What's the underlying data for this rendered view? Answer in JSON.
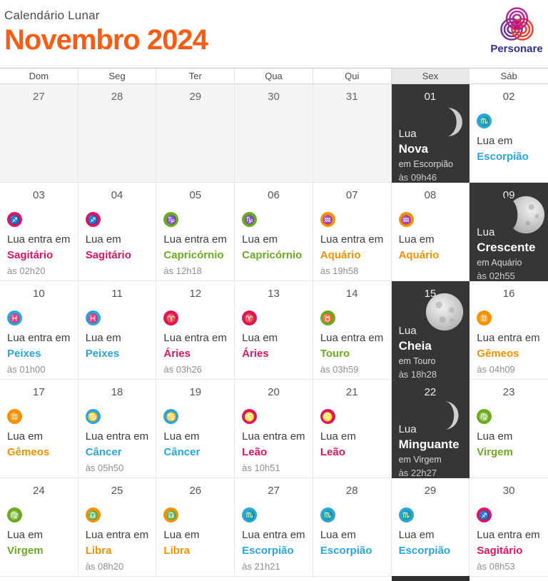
{
  "header": {
    "subtitle": "Calendário Lunar",
    "title": "Novembro 2024",
    "brand": "Personare"
  },
  "weekdays": [
    "Dom",
    "Seg",
    "Ter",
    "Qua",
    "Qui",
    "Sex",
    "Sáb"
  ],
  "highlight_weekday": "Sex",
  "colors": {
    "fire": "#e0145f",
    "earth": "#6cab1f",
    "air": "#f39200",
    "water": "#2aa6de",
    "accent": "#f95c12",
    "dark_cell": "#363636",
    "brand_text": "#2e3192"
  },
  "cells": [
    {
      "day": "27",
      "type": "prev"
    },
    {
      "day": "28",
      "type": "prev"
    },
    {
      "day": "29",
      "type": "prev"
    },
    {
      "day": "30",
      "type": "prev"
    },
    {
      "day": "31",
      "type": "prev"
    },
    {
      "day": "01",
      "type": "phase",
      "label": "Lua",
      "phase": "Nova",
      "detail": "em Escorpião",
      "time": "às 09h46",
      "moon": "new"
    },
    {
      "day": "02",
      "type": "sign",
      "id": "escorpiao",
      "glyph": "♏",
      "element": "water",
      "line1": "Lua em",
      "sign": "Escorpião",
      "time": null
    },
    {
      "day": "03",
      "type": "sign",
      "id": "sagitario",
      "glyph": "♐",
      "element": "fire",
      "line1": "Lua entra em",
      "sign": "Sagitário",
      "time": "às 02h20"
    },
    {
      "day": "04",
      "type": "sign",
      "id": "sagitario",
      "glyph": "♐",
      "element": "fire",
      "line1": "Lua em",
      "sign": "Sagitário",
      "time": null
    },
    {
      "day": "05",
      "type": "sign",
      "id": "capricornio",
      "glyph": "♑",
      "element": "earth",
      "line1": "Lua entra em",
      "sign": "Capricórnio",
      "time": "às 12h18"
    },
    {
      "day": "06",
      "type": "sign",
      "id": "capricornio",
      "glyph": "♑",
      "element": "earth",
      "line1": "Lua em",
      "sign": "Capricórnio",
      "time": null
    },
    {
      "day": "07",
      "type": "sign",
      "id": "aquario",
      "glyph": "♒",
      "element": "air",
      "line1": "Lua entra em",
      "sign": "Aquário",
      "time": "às 19h58"
    },
    {
      "day": "08",
      "type": "sign",
      "id": "aquario",
      "glyph": "♒",
      "element": "air",
      "line1": "Lua em",
      "sign": "Aquário",
      "time": null
    },
    {
      "day": "09",
      "type": "phase",
      "label": "Lua",
      "phase": "Crescente",
      "detail": "em Aquário",
      "time": "às 02h55",
      "moon": "gibbous"
    },
    {
      "day": "10",
      "type": "sign",
      "id": "peixes",
      "glyph": "♓",
      "element": "water",
      "line1": "Lua entra em",
      "sign": "Peixes",
      "time": "às 01h00"
    },
    {
      "day": "11",
      "type": "sign",
      "id": "peixes",
      "glyph": "♓",
      "element": "water",
      "line1": "Lua em",
      "sign": "Peixes",
      "time": null
    },
    {
      "day": "12",
      "type": "sign",
      "id": "aries",
      "glyph": "♈",
      "element": "fire",
      "line1": "Lua entra em",
      "sign": "Áries",
      "time": "às 03h26"
    },
    {
      "day": "13",
      "type": "sign",
      "id": "aries",
      "glyph": "♈",
      "element": "fire",
      "line1": "Lua em",
      "sign": "Áries",
      "time": null
    },
    {
      "day": "14",
      "type": "sign",
      "id": "touro",
      "glyph": "♉",
      "element": "earth",
      "line1": "Lua entra em",
      "sign": "Touro",
      "time": "às 03h59"
    },
    {
      "day": "15",
      "type": "phase",
      "label": "Lua",
      "phase": "Cheia",
      "detail": "em Touro",
      "time": "às 18h28",
      "moon": "full"
    },
    {
      "day": "16",
      "type": "sign",
      "id": "gemeos",
      "glyph": "♊",
      "element": "air",
      "line1": "Lua entra em",
      "sign": "Gêmeos",
      "time": "às 04h09"
    },
    {
      "day": "17",
      "type": "sign",
      "id": "gemeos",
      "glyph": "♊",
      "element": "air",
      "line1": "Lua em",
      "sign": "Gêmeos",
      "time": null
    },
    {
      "day": "18",
      "type": "sign",
      "id": "cancer",
      "glyph": "♋",
      "element": "water",
      "line1": "Lua entra em",
      "sign": "Câncer",
      "time": "às 05h50"
    },
    {
      "day": "19",
      "type": "sign",
      "id": "cancer",
      "glyph": "♋",
      "element": "water",
      "line1": "Lua em",
      "sign": "Câncer",
      "time": null
    },
    {
      "day": "20",
      "type": "sign",
      "id": "leao",
      "glyph": "♌",
      "element": "fire",
      "line1": "Lua entra em",
      "sign": "Leão",
      "time": "às 10h51"
    },
    {
      "day": "21",
      "type": "sign",
      "id": "leao",
      "glyph": "♌",
      "element": "fire",
      "line1": "Lua em",
      "sign": "Leão",
      "time": null
    },
    {
      "day": "22",
      "type": "phase",
      "label": "Lua",
      "phase": "Minguante",
      "detail": "em Virgem",
      "time": "às 22h27",
      "moon": "crescent"
    },
    {
      "day": "23",
      "type": "sign",
      "id": "virgem",
      "glyph": "♍",
      "element": "earth",
      "line1": "Lua em",
      "sign": "Virgem",
      "time": null
    },
    {
      "day": "24",
      "type": "sign",
      "id": "virgem",
      "glyph": "♍",
      "element": "earth",
      "line1": "Lua em",
      "sign": "Virgem",
      "time": null
    },
    {
      "day": "25",
      "type": "sign",
      "id": "libra",
      "glyph": "♎",
      "element": "air",
      "line1": "Lua entra em",
      "sign": "Libra",
      "time": "às 08h20"
    },
    {
      "day": "26",
      "type": "sign",
      "id": "libra",
      "glyph": "♎",
      "element": "air",
      "line1": "Lua em",
      "sign": "Libra",
      "time": null
    },
    {
      "day": "27",
      "type": "sign",
      "id": "escorpiao",
      "glyph": "♏",
      "element": "water",
      "line1": "Lua entra em",
      "sign": "Escorpião",
      "time": "às 21h21"
    },
    {
      "day": "28",
      "type": "sign",
      "id": "escorpiao",
      "glyph": "♏",
      "element": "water",
      "line1": "Lua em",
      "sign": "Escorpião",
      "time": null
    },
    {
      "day": "29",
      "type": "sign",
      "id": "escorpiao",
      "glyph": "♏",
      "element": "water",
      "line1": "Lua em",
      "sign": "Escorpião",
      "time": null
    },
    {
      "day": "30",
      "type": "sign",
      "id": "sagitario",
      "glyph": "♐",
      "element": "fire",
      "line1": "Lua entra em",
      "sign": "Sagitário",
      "time": "às 08h53"
    }
  ]
}
